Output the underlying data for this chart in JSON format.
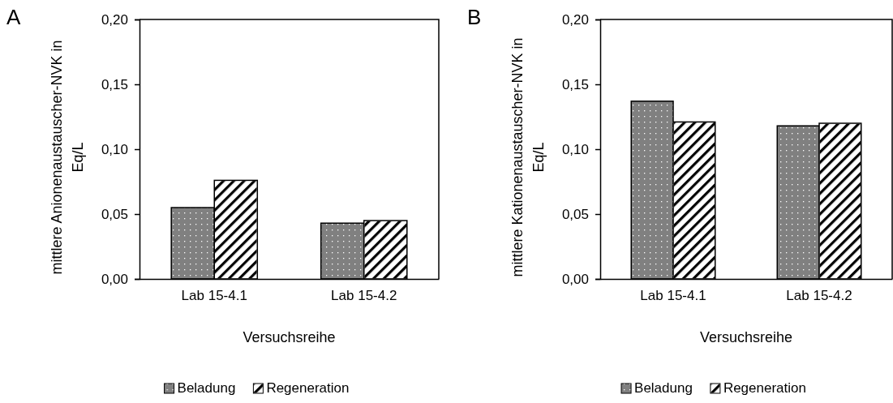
{
  "chart_data": [
    {
      "type": "bar",
      "title": "A",
      "xlabel": "Versuchsreihe",
      "ylabel": "mittlere Anionenaustauscher-NVK in Eq/L",
      "categories": [
        "Lab 15-4.1",
        "Lab 15-4.2"
      ],
      "series": [
        {
          "name": "Beladung",
          "color": "#808080",
          "values": [
            0.055,
            0.043
          ]
        },
        {
          "name": "Regeneration",
          "color": "#ffffff",
          "values": [
            0.076,
            0.045
          ]
        }
      ],
      "ylim": [
        0,
        0.2
      ],
      "yticks": [
        {
          "value": 0,
          "label": "0,00"
        },
        {
          "value": 0.05,
          "label": "0,05"
        },
        {
          "value": 0.1,
          "label": "0,10"
        },
        {
          "value": 0.15,
          "label": "0,15"
        },
        {
          "value": 0.2,
          "label": "0,20"
        }
      ],
      "legend": "bottom"
    },
    {
      "type": "bar",
      "title": "B",
      "xlabel": "Versuchsreihe",
      "ylabel": "mittlere Kationenaustauscher-NVK in Eq/L",
      "categories": [
        "Lab 15-4.1",
        "Lab 15-4.2"
      ],
      "series": [
        {
          "name": "Beladung",
          "color": "#808080",
          "values": [
            0.137,
            0.118
          ]
        },
        {
          "name": "Regeneration",
          "color": "#ffffff",
          "values": [
            0.121,
            0.12
          ]
        }
      ],
      "ylim": [
        0,
        0.2
      ],
      "yticks": [
        {
          "value": 0,
          "label": "0,00"
        },
        {
          "value": 0.05,
          "label": "0,05"
        },
        {
          "value": 0.1,
          "label": "0,10"
        },
        {
          "value": 0.15,
          "label": "0,15"
        },
        {
          "value": 0.2,
          "label": "0,20"
        }
      ],
      "legend": "bottom"
    }
  ]
}
